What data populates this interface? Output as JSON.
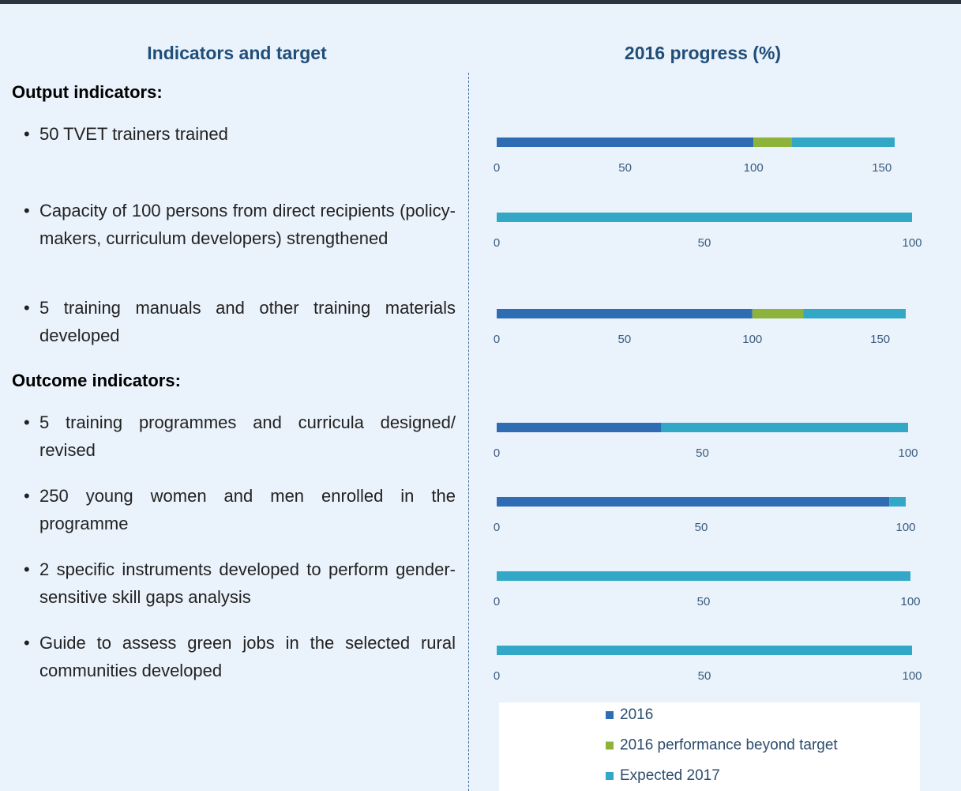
{
  "headers": {
    "left": "Indicators and target",
    "right": "2016 progress (%)"
  },
  "sections": [
    {
      "title": "Output indicators:",
      "items": [
        "50 TVET trainers trained",
        "Capacity of 100 persons from direct recipients (policy-makers, curriculum developers) strengthened",
        "5 training manuals and other training materials developed"
      ]
    },
    {
      "title": "Outcome indicators:",
      "items": [
        "5 training programmes and curricula designed/ revised",
        "250 young women and men enrolled in the programme",
        "2 specific instruments developed to perform gender-sensitive skill gaps analysis",
        "Guide to assess green jobs in the selected rural communities developed"
      ]
    }
  ],
  "legend": {
    "series": [
      {
        "name": "2016",
        "color": "#2e6db4"
      },
      {
        "name": "2016 performance beyond target",
        "color": "#8db33a"
      },
      {
        "name": "Expected 2017",
        "color": "#33a8c6"
      }
    ]
  },
  "chart_data": [
    {
      "type": "bar",
      "values": [
        100,
        15,
        40
      ],
      "xlim": [
        0,
        155
      ],
      "xticks": [
        0,
        50,
        100,
        150
      ]
    },
    {
      "type": "bar",
      "values": [
        0,
        0,
        100
      ],
      "xlim": [
        0,
        100
      ],
      "xticks": [
        0,
        50,
        100
      ]
    },
    {
      "type": "bar",
      "values": [
        100,
        20,
        40
      ],
      "xlim": [
        0,
        160
      ],
      "xticks": [
        0,
        50,
        100,
        150
      ]
    },
    {
      "type": "bar",
      "values": [
        40,
        0,
        60
      ],
      "xlim": [
        0,
        100
      ],
      "xticks": [
        0,
        50,
        100
      ]
    },
    {
      "type": "bar",
      "values": [
        96,
        0,
        4
      ],
      "xlim": [
        0,
        100
      ],
      "xticks": [
        0,
        50,
        100
      ]
    },
    {
      "type": "bar",
      "values": [
        0,
        0,
        100
      ],
      "xlim": [
        0,
        100
      ],
      "xticks": [
        0,
        50,
        100
      ]
    },
    {
      "type": "bar",
      "values": [
        0,
        0,
        100
      ],
      "xlim": [
        0,
        100
      ],
      "xticks": [
        0,
        50,
        100
      ]
    }
  ]
}
